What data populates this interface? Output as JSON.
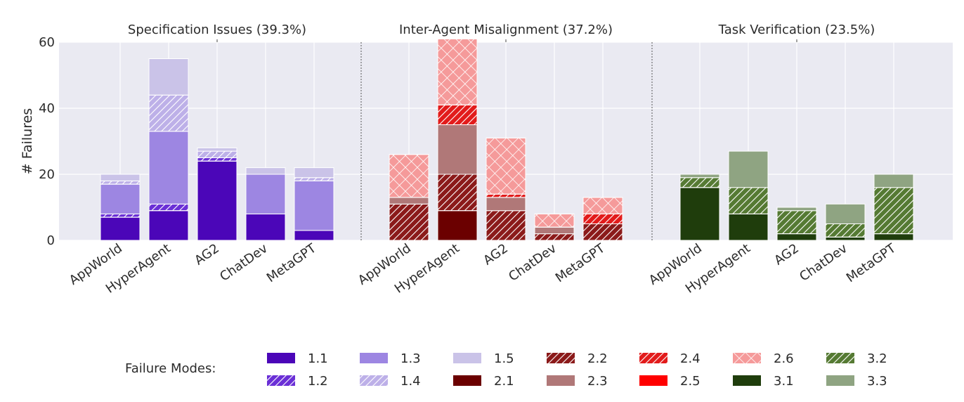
{
  "legend": {
    "title": "Failure Modes:",
    "placement": "bottom"
  },
  "chart_data": {
    "type": "bar",
    "stacked": true,
    "ylabel": "# Failures",
    "ylim": [
      0,
      60
    ],
    "yticks": [
      0,
      20,
      40,
      60
    ],
    "grid": true,
    "categories": [
      "AppWorld",
      "HyperAgent",
      "AG2",
      "ChatDev",
      "MetaGPT"
    ],
    "panels": [
      {
        "title": "Specification Issues (39.3%)",
        "modes": [
          {
            "name": "1.1",
            "color": "#4b06b8",
            "hatch": false,
            "values": [
              7,
              9,
              24,
              8,
              3
            ]
          },
          {
            "name": "1.2",
            "color": "#6a2fd6",
            "hatch": true,
            "values": [
              1,
              2,
              1,
              0,
              0
            ]
          },
          {
            "name": "1.3",
            "color": "#9d86e2",
            "hatch": false,
            "values": [
              9,
              22,
              0,
              12,
              15
            ]
          },
          {
            "name": "1.4",
            "color": "#bdb0e8",
            "hatch": true,
            "values": [
              1,
              11,
              2,
              0,
              1
            ]
          },
          {
            "name": "1.5",
            "color": "#cac3e8",
            "hatch": false,
            "values": [
              2,
              11,
              1,
              2,
              3
            ]
          }
        ]
      },
      {
        "title": "Inter-Agent Misalignment (37.2%)",
        "modes": [
          {
            "name": "2.1",
            "color": "#6b0000",
            "hatch": false,
            "values": [
              0,
              9,
              0,
              0,
              0
            ]
          },
          {
            "name": "2.2",
            "color": "#8b1a1a",
            "hatch": true,
            "values": [
              11,
              11,
              9,
              2,
              5
            ]
          },
          {
            "name": "2.3",
            "color": "#b07878",
            "hatch": false,
            "values": [
              2,
              15,
              4,
              2,
              0
            ]
          },
          {
            "name": "2.4",
            "color": "#e21b1b",
            "hatch": true,
            "values": [
              0,
              6,
              1,
              0,
              3
            ]
          },
          {
            "name": "2.5",
            "color": "#ff0000",
            "hatch": false,
            "values": [
              0,
              0,
              0,
              0,
              0
            ]
          },
          {
            "name": "2.6",
            "color": "#f59a9a",
            "hatch": "cross",
            "values": [
              13,
              20,
              17,
              4,
              5
            ]
          }
        ]
      },
      {
        "title": "Task Verification (23.5%)",
        "modes": [
          {
            "name": "3.1",
            "color": "#1f3d0c",
            "hatch": false,
            "values": [
              16,
              8,
              2,
              1,
              2
            ]
          },
          {
            "name": "3.2",
            "color": "#557a33",
            "hatch": true,
            "values": [
              3,
              8,
              7,
              4,
              14
            ]
          },
          {
            "name": "3.3",
            "color": "#8fa482",
            "hatch": false,
            "values": [
              1,
              11,
              1,
              6,
              4
            ]
          }
        ]
      }
    ],
    "legend_order": [
      "1.1",
      "1.3",
      "1.5",
      "2.2",
      "2.4",
      "2.6",
      "3.2",
      "1.2",
      "1.4",
      "2.1",
      "2.3",
      "2.5",
      "3.1",
      "3.3"
    ]
  }
}
